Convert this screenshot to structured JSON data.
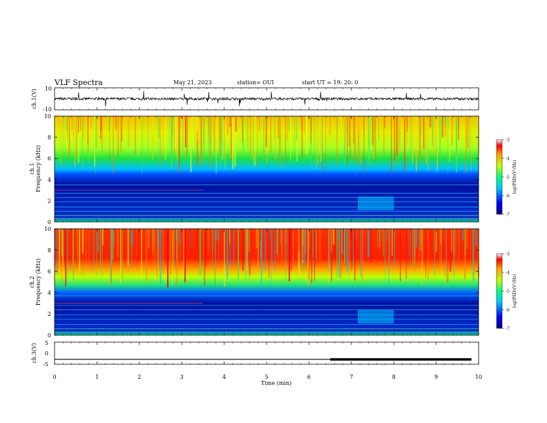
{
  "header": {
    "title": "VLF Spectra",
    "date": "May 21, 2023",
    "station": "station= OUI",
    "start": "start  UT =   19: 20: 0"
  },
  "panels": {
    "ch1_wave": {
      "ylabel": "ch.1(V)",
      "yticks": [
        "10",
        "-10"
      ],
      "range": [
        -10,
        10
      ]
    },
    "ch1_spec": {
      "ylabel_top": "ch.1",
      "ylabel": "Frequency (kHz)",
      "yticks": [
        "10",
        "8",
        "6",
        "4",
        "2",
        "0"
      ]
    },
    "ch2_spec": {
      "ylabel_top": "ch.2",
      "ylabel": "Frequency (kHz)",
      "yticks": [
        "10",
        "8",
        "6",
        "4",
        "2",
        "0"
      ]
    },
    "ch3_wave": {
      "ylabel": "ch.3(V)",
      "yticks": [
        "5",
        "0",
        "-5"
      ],
      "range": [
        -5,
        5
      ]
    }
  },
  "colorbar": {
    "ticks": [
      "-3",
      "-4",
      "-5",
      "-6",
      "-7"
    ],
    "label": "log(PSD)(V²/Hz)"
  },
  "xaxis": {
    "label": "Time  (min)",
    "ticks": [
      "0",
      "1",
      "2",
      "3",
      "4",
      "5",
      "6",
      "7",
      "8",
      "9",
      "10"
    ]
  },
  "chart_data": [
    {
      "type": "line",
      "name": "ch.1 waveform",
      "xlabel": "",
      "ylabel": "ch.1(V)",
      "xlim": [
        0,
        10
      ],
      "ylim": [
        -10,
        10
      ],
      "series": [
        {
          "x": [
            0,
            9.83
          ],
          "y": [
            0,
            0
          ]
        }
      ],
      "notes": "noisy trace centered near 0 V, amplitude about ±2 V with occasional spikes"
    },
    {
      "type": "heatmap",
      "name": "ch.1 spectrogram",
      "xlabel": "Time  (min)",
      "ylabel": "Frequency (kHz)",
      "xlim": [
        0,
        10
      ],
      "ylim": [
        0,
        10
      ],
      "colorbar_range": [
        -7,
        -3
      ],
      "bands_kHz": [
        {
          "from": 0,
          "to": 4.5,
          "log_psd": -6.5
        },
        {
          "from": 4.5,
          "to": 6.5,
          "log_psd": -5
        },
        {
          "from": 6.5,
          "to": 10,
          "log_psd": -4
        }
      ]
    },
    {
      "type": "heatmap",
      "name": "ch.2 spectrogram",
      "xlabel": "Time  (min)",
      "ylabel": "Frequency (kHz)",
      "xlim": [
        0,
        10
      ],
      "ylim": [
        0,
        10
      ],
      "colorbar_range": [
        -7,
        -3
      ],
      "bands_kHz": [
        {
          "from": 0,
          "to": 4.2,
          "log_psd": -6.5
        },
        {
          "from": 4.2,
          "to": 6.5,
          "log_psd": -5
        },
        {
          "from": 6.5,
          "to": 10,
          "log_psd": -3.5
        }
      ]
    },
    {
      "type": "line",
      "name": "ch.3 waveform",
      "xlabel": "Time  (min)",
      "ylabel": "ch.3(V)",
      "xlim": [
        0,
        10
      ],
      "ylim": [
        -5,
        5
      ],
      "series": [
        {
          "x": [
            0,
            6.5,
            6.5,
            9.83
          ],
          "y": [
            -2.8,
            -2.8,
            -2.8,
            -2.8
          ]
        }
      ],
      "notes": "flat line near -2.8 V; thicker trace from about 6.5 min"
    }
  ]
}
